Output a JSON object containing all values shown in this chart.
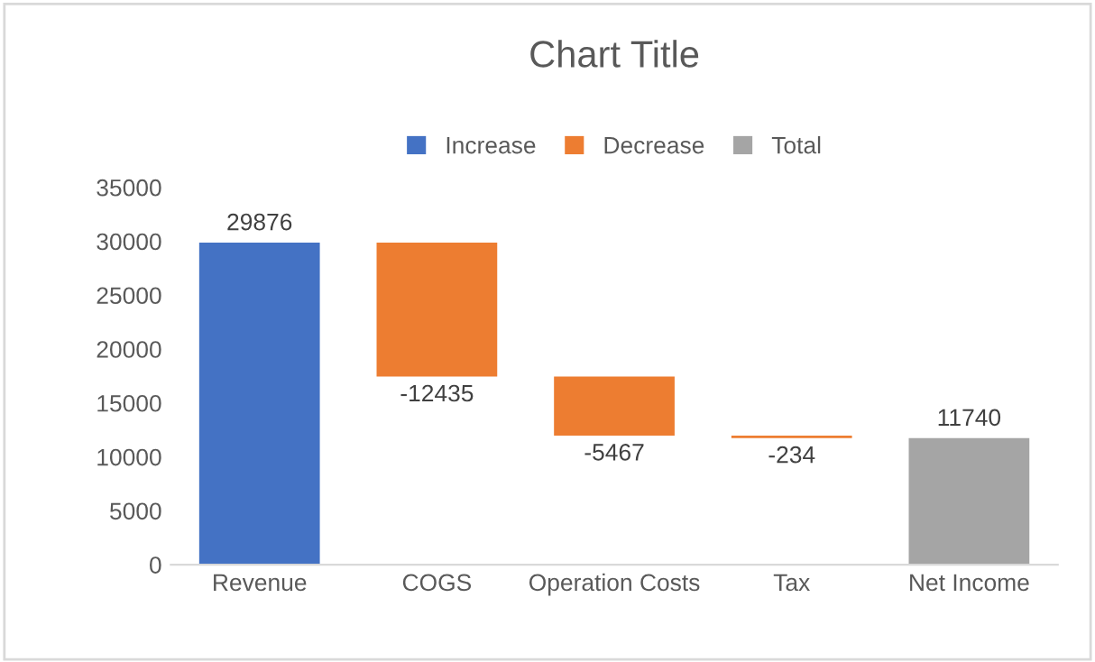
{
  "chart_data": {
    "type": "bar",
    "title": "Chart Title",
    "categories": [
      "Revenue",
      "COGS",
      "Operation Costs",
      "Tax",
      "Net Income"
    ],
    "series": [
      {
        "name": "Increase",
        "color": "#4472c4",
        "values": [
          29876,
          null,
          null,
          null,
          null
        ],
        "base": [
          0,
          null,
          null,
          null,
          null
        ]
      },
      {
        "name": "Decrease",
        "color": "#ed7d31",
        "values": [
          null,
          -12435,
          -5467,
          -234,
          null
        ],
        "base": [
          null,
          29876,
          17441,
          11974,
          null
        ]
      },
      {
        "name": "Total",
        "color": "#a5a5a5",
        "values": [
          null,
          null,
          null,
          null,
          11740
        ],
        "base": [
          null,
          null,
          null,
          null,
          0
        ]
      }
    ],
    "ylim": [
      0,
      35000
    ],
    "yticks": [
      0,
      5000,
      10000,
      15000,
      20000,
      25000,
      30000,
      35000
    ],
    "data_labels": true,
    "grid": false,
    "legend": "top"
  }
}
